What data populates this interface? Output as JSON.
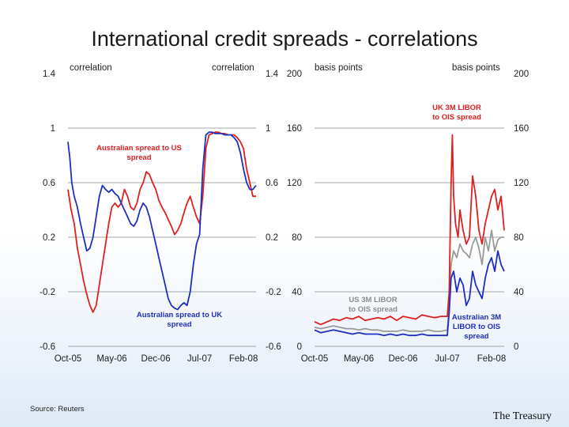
{
  "title": "International credit spreads - correlations",
  "source": "Source: Reuters",
  "brand": "The Treasury",
  "colors": {
    "red": "#e02020",
    "blue": "#1f2fbf",
    "grey": "#9a9a9a"
  },
  "chart_data": [
    {
      "type": "line",
      "left_unit": "correlation",
      "right_unit": "correlation",
      "ylim": [
        -0.6,
        1.4
      ],
      "yticks": [
        "1.4",
        "1",
        "0.6",
        "0.2",
        "-0.2",
        "-0.6"
      ],
      "ytick_values": [
        1.4,
        1.0,
        0.6,
        0.2,
        -0.2,
        -0.6
      ],
      "xlim": [
        0,
        30
      ],
      "xticks": [
        "Oct-05",
        "May-06",
        "Dec-06",
        "Jul-07",
        "Feb-08"
      ],
      "xtick_values": [
        0,
        7,
        14,
        21,
        28
      ],
      "annotations": [
        {
          "lines": [
            "Australian spread to US",
            "spread"
          ],
          "color": "red"
        },
        {
          "lines": [
            "Australian spread to UK",
            "spread"
          ],
          "color": "blue"
        }
      ],
      "series": [
        {
          "color": "red",
          "x": [
            0,
            0.5,
            1,
            1.5,
            2,
            2.5,
            3,
            3.5,
            4,
            4.5,
            5,
            5.5,
            6,
            6.5,
            7,
            7.5,
            8,
            8.5,
            9,
            9.5,
            10,
            10.5,
            11,
            11.5,
            12,
            12.5,
            13,
            13.5,
            14,
            14.5,
            15,
            15.5,
            16,
            16.5,
            17,
            17.5,
            18,
            18.5,
            19,
            19.5,
            20,
            20.5,
            21,
            21.5,
            22,
            22.5,
            23,
            23.5,
            24,
            24.5,
            25,
            25.5,
            26,
            26.5,
            27,
            27.5,
            28,
            28.5,
            29,
            29.5,
            30
          ],
          "values": [
            0.55,
            0.4,
            0.3,
            0.12,
            0.0,
            -0.12,
            -0.22,
            -0.3,
            -0.35,
            -0.3,
            -0.15,
            0.0,
            0.15,
            0.3,
            0.42,
            0.45,
            0.42,
            0.45,
            0.55,
            0.5,
            0.42,
            0.4,
            0.45,
            0.55,
            0.6,
            0.68,
            0.66,
            0.6,
            0.55,
            0.47,
            0.42,
            0.38,
            0.33,
            0.28,
            0.22,
            0.25,
            0.3,
            0.38,
            0.45,
            0.5,
            0.42,
            0.35,
            0.3,
            0.5,
            0.85,
            0.95,
            0.96,
            0.97,
            0.97,
            0.96,
            0.96,
            0.95,
            0.95,
            0.95,
            0.93,
            0.9,
            0.85,
            0.7,
            0.6,
            0.5,
            0.5
          ]
        },
        {
          "color": "blue",
          "x": [
            0,
            0.3,
            0.6,
            1,
            1.5,
            2,
            2.5,
            3,
            3.5,
            4,
            4.5,
            5,
            5.5,
            6,
            6.5,
            7,
            7.5,
            8,
            8.5,
            9,
            9.5,
            10,
            10.5,
            11,
            11.5,
            12,
            12.5,
            13,
            13.5,
            14,
            14.5,
            15,
            15.5,
            16,
            16.5,
            17,
            17.5,
            18,
            18.5,
            19,
            19.5,
            20,
            20.5,
            21,
            21.5,
            22,
            22.5,
            23,
            23.5,
            24,
            24.5,
            25,
            25.5,
            26,
            26.5,
            27,
            27.5,
            28,
            28.5,
            29,
            29.5,
            30
          ],
          "values": [
            0.9,
            0.78,
            0.6,
            0.5,
            0.42,
            0.3,
            0.2,
            0.1,
            0.12,
            0.2,
            0.35,
            0.5,
            0.58,
            0.55,
            0.53,
            0.55,
            0.52,
            0.5,
            0.45,
            0.4,
            0.35,
            0.3,
            0.28,
            0.32,
            0.4,
            0.45,
            0.42,
            0.35,
            0.25,
            0.15,
            0.05,
            -0.05,
            -0.15,
            -0.25,
            -0.3,
            -0.32,
            -0.33,
            -0.3,
            -0.28,
            -0.3,
            -0.2,
            0.0,
            0.15,
            0.22,
            0.7,
            0.95,
            0.97,
            0.97,
            0.96,
            0.96,
            0.96,
            0.95,
            0.95,
            0.95,
            0.93,
            0.9,
            0.82,
            0.7,
            0.6,
            0.55,
            0.55,
            0.58
          ]
        }
      ]
    },
    {
      "type": "line",
      "left_unit": "basis points",
      "right_unit": "basis points",
      "ylim": [
        0,
        200
      ],
      "yticks": [
        "200",
        "160",
        "120",
        "80",
        "40",
        "0"
      ],
      "ytick_values": [
        200,
        160,
        120,
        80,
        40,
        0
      ],
      "xlim": [
        0,
        30
      ],
      "xticks": [
        "Oct-05",
        "May-06",
        "Dec-06",
        "Jul-07",
        "Feb-08"
      ],
      "xtick_values": [
        0,
        7,
        14,
        21,
        28
      ],
      "annotations": [
        {
          "lines": [
            "UK 3M LIBOR",
            "to OIS spread"
          ],
          "color": "red"
        },
        {
          "lines": [
            "US 3M LIBOR",
            "to OIS spread"
          ],
          "color": "grey"
        },
        {
          "lines": [
            "Australian 3M",
            "LIBOR to OIS",
            "spread"
          ],
          "color": "blue"
        }
      ],
      "series": [
        {
          "color": "grey",
          "x": [
            0,
            1,
            2,
            3,
            4,
            5,
            6,
            7,
            8,
            9,
            10,
            11,
            12,
            13,
            14,
            15,
            16,
            17,
            18,
            19,
            20,
            21,
            21.3,
            21.6,
            22,
            22.5,
            23,
            23.5,
            24,
            24.5,
            25,
            25.5,
            26,
            26.5,
            27,
            27.5,
            28,
            28.5,
            29,
            29.5,
            30
          ],
          "values": [
            14,
            13,
            14,
            15,
            14,
            13,
            13,
            12,
            13,
            12,
            12,
            11,
            11,
            11,
            12,
            11,
            11,
            11,
            12,
            11,
            11,
            12,
            30,
            60,
            70,
            65,
            75,
            70,
            68,
            65,
            75,
            80,
            72,
            60,
            80,
            70,
            85,
            70,
            78,
            80,
            80
          ]
        },
        {
          "color": "red",
          "x": [
            0,
            1,
            2,
            3,
            4,
            5,
            6,
            7,
            8,
            9,
            10,
            11,
            12,
            13,
            14,
            15,
            16,
            17,
            18,
            19,
            20,
            21,
            21.3,
            21.6,
            21.8,
            22,
            22.3,
            22.7,
            23,
            23.5,
            24,
            24.5,
            25,
            25.5,
            26,
            26.5,
            27,
            27.5,
            28,
            28.5,
            29,
            29.5,
            30
          ],
          "values": [
            18,
            16,
            18,
            20,
            19,
            21,
            20,
            22,
            19,
            20,
            21,
            20,
            22,
            19,
            22,
            21,
            20,
            23,
            22,
            21,
            22,
            22,
            40,
            120,
            155,
            110,
            90,
            80,
            100,
            85,
            75,
            80,
            125,
            110,
            85,
            75,
            90,
            100,
            110,
            115,
            100,
            110,
            85
          ]
        },
        {
          "color": "blue",
          "x": [
            0,
            1,
            2,
            3,
            4,
            5,
            6,
            7,
            8,
            9,
            10,
            11,
            12,
            13,
            14,
            15,
            16,
            17,
            18,
            19,
            20,
            21,
            21.3,
            21.6,
            22,
            22.5,
            23,
            23.5,
            24,
            24.5,
            25,
            25.5,
            26,
            26.5,
            27,
            27.5,
            28,
            28.5,
            29,
            29.5,
            30
          ],
          "values": [
            12,
            10,
            11,
            12,
            11,
            10,
            9,
            10,
            9,
            9,
            9,
            8,
            9,
            8,
            9,
            8,
            8,
            9,
            8,
            8,
            8,
            8,
            25,
            50,
            55,
            40,
            50,
            45,
            30,
            35,
            55,
            45,
            40,
            35,
            50,
            60,
            65,
            55,
            70,
            60,
            55
          ]
        }
      ]
    }
  ]
}
